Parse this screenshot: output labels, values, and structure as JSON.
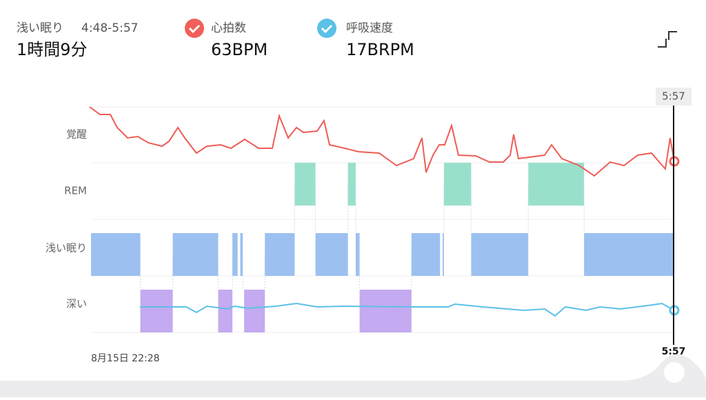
{
  "header": {
    "stage": "浅い眠り",
    "range": "4:48-5:57",
    "duration": "1時間9分",
    "heart_label": "心拍数",
    "heart_value": "63BPM",
    "breath_label": "呼吸速度",
    "breath_value": "17BRPM"
  },
  "hypnogram": {
    "stages": [
      "覚醒",
      "REM",
      "浅い眠り",
      "深い"
    ],
    "start_label": "8月15日 22:28",
    "end_label": "5:57",
    "cursor_label": "5:57",
    "duration_min": 449,
    "segments": [
      {
        "stage": 2,
        "start": 0,
        "end": 38
      },
      {
        "stage": 3,
        "start": 38,
        "end": 63
      },
      {
        "stage": 2,
        "start": 63,
        "end": 98
      },
      {
        "stage": 3,
        "start": 98,
        "end": 109
      },
      {
        "stage": 2,
        "start": 109,
        "end": 113
      },
      {
        "stage": 2,
        "start": 115,
        "end": 117
      },
      {
        "stage": 3,
        "start": 118,
        "end": 134
      },
      {
        "stage": 2,
        "start": 134,
        "end": 157
      },
      {
        "stage": 1,
        "start": 157,
        "end": 173
      },
      {
        "stage": 2,
        "start": 173,
        "end": 198
      },
      {
        "stage": 1,
        "start": 198,
        "end": 204
      },
      {
        "stage": 2,
        "start": 204,
        "end": 207
      },
      {
        "stage": 3,
        "start": 207,
        "end": 247
      },
      {
        "stage": 2,
        "start": 247,
        "end": 269
      },
      {
        "stage": 2,
        "start": 271,
        "end": 272
      },
      {
        "stage": 1,
        "start": 272,
        "end": 293
      },
      {
        "stage": 2,
        "start": 293,
        "end": 337
      },
      {
        "stage": 1,
        "start": 337,
        "end": 380
      },
      {
        "stage": 2,
        "start": 380,
        "end": 449
      }
    ]
  }
}
